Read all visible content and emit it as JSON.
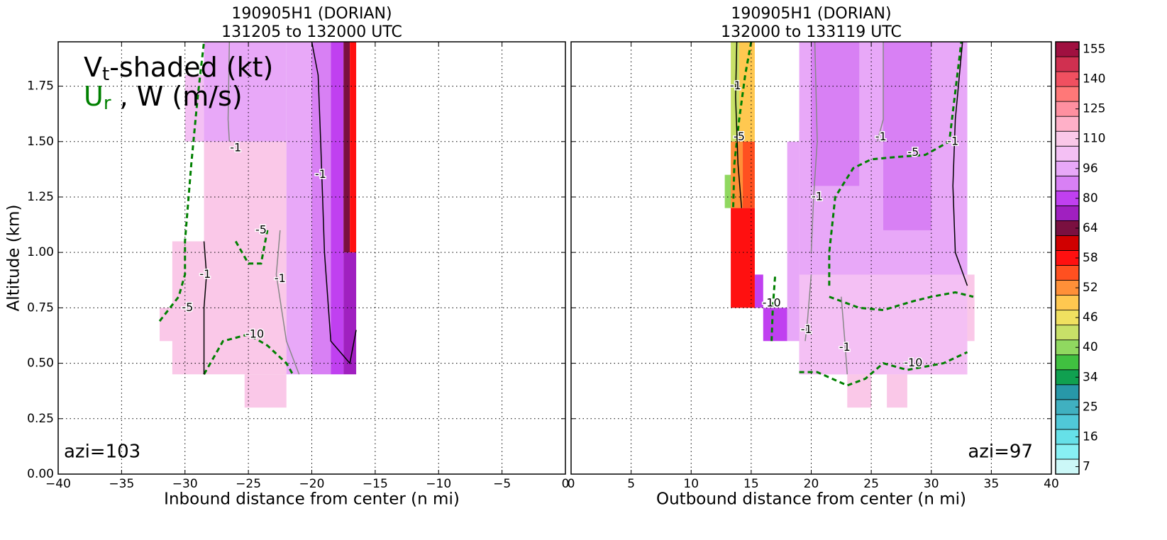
{
  "chart_data": [
    {
      "type": "contour",
      "title": [
        "190905H1 (DORIAN)",
        "131205 to 132000 UTC"
      ],
      "xlabel": "Inbound distance from center (n mi)",
      "ylabel": "Altitude (km)",
      "xlim": [
        -40,
        0
      ],
      "ylim": [
        0,
        1.95
      ],
      "xticks": [
        {
          "value": -40,
          "label": "−40"
        },
        {
          "value": -35,
          "label": "−35"
        },
        {
          "value": -30,
          "label": "−30"
        },
        {
          "value": -25,
          "label": "−25"
        },
        {
          "value": -20,
          "label": "−20"
        },
        {
          "value": -15,
          "label": "−15"
        },
        {
          "value": -10,
          "label": "−10"
        },
        {
          "value": -5,
          "label": "−5"
        },
        0
      ],
      "yticks": [
        {
          "value": 0,
          "label": "0.00"
        },
        {
          "value": 0.25,
          "label": "0.25"
        },
        {
          "value": 0.5,
          "label": "0.50"
        },
        {
          "value": 0.75,
          "label": "0.75"
        },
        {
          "value": 1,
          "label": "1.00"
        },
        {
          "value": 1.25,
          "label": "1.25"
        },
        {
          "value": 1.5,
          "label": "1.50"
        },
        {
          "value": 1.75,
          "label": "1.75"
        }
      ],
      "grid": true,
      "legend": {
        "vt": [
          "V",
          "t",
          "-shaded (kt)"
        ],
        "ur": [
          "U",
          "r",
          " , W (m/s)"
        ],
        "ur_color": "#008000"
      },
      "annotation": "azi=103",
      "fields": [
        {
          "x": [
            -30,
            -28.5
          ],
          "y": [
            1.5,
            1.8
          ],
          "value": 103
        },
        {
          "x": [
            -32,
            -30
          ],
          "y": [
            0.6,
            0.75
          ],
          "value": 110
        },
        {
          "x": [
            -31,
            -28.5
          ],
          "y": [
            0.45,
            1.05
          ],
          "value": 110
        },
        {
          "x": [
            -28.5,
            -22
          ],
          "y": [
            0.45,
            1.5
          ],
          "value": 110
        },
        {
          "x": [
            -25.3,
            -22
          ],
          "y": [
            0.3,
            0.45
          ],
          "value": 110
        },
        {
          "x": [
            -28.5,
            -22
          ],
          "y": [
            1.5,
            1.95
          ],
          "value": 96
        },
        {
          "x": [
            -22,
            -20
          ],
          "y": [
            0.45,
            1.95
          ],
          "value": 96
        },
        {
          "x": [
            -20,
            -18.5
          ],
          "y": [
            0.45,
            1.95
          ],
          "value": 88
        },
        {
          "x": [
            -18.5,
            -17.5
          ],
          "y": [
            0.45,
            1.95
          ],
          "value": 80
        },
        {
          "x": [
            -17.5,
            -16.5
          ],
          "y": [
            0.45,
            1.0
          ],
          "value": 72
        },
        {
          "x": [
            -17.5,
            -17
          ],
          "y": [
            1.0,
            1.95
          ],
          "value": 64
        },
        {
          "x": [
            -17,
            -16.5
          ],
          "y": [
            1.0,
            1.95
          ],
          "value": 58
        }
      ],
      "contours": [
        {
          "level": -5,
          "color": "#008000",
          "dashed": true,
          "x": [
            -32,
            -30.5,
            -30,
            -30,
            -29.5,
            -29,
            -28.5
          ],
          "y": [
            0.69,
            0.8,
            0.9,
            1.05,
            1.4,
            1.7,
            1.95
          ],
          "label_at": [
            -29.8,
            0.75
          ]
        },
        {
          "level": -10,
          "color": "#008000",
          "dashed": true,
          "x": [
            -28.5,
            -27,
            -25,
            -23.5,
            -22,
            -21.5
          ],
          "y": [
            0.45,
            0.6,
            0.63,
            0.58,
            0.5,
            0.45
          ],
          "label_at": [
            -24.5,
            0.63
          ]
        },
        {
          "level": -5,
          "color": "#008000",
          "dashed": true,
          "x": [
            -26,
            -25,
            -24,
            -23.5
          ],
          "y": [
            1.05,
            0.95,
            0.95,
            1.1
          ],
          "label_at": [
            -24,
            1.1
          ]
        },
        {
          "level": -1,
          "color": "#000000",
          "dashed": false,
          "x": [
            -28.5,
            -28.5,
            -28.3,
            -28.5
          ],
          "y": [
            0.45,
            0.75,
            0.9,
            1.05
          ],
          "label_at": [
            -28.4,
            0.9
          ]
        },
        {
          "level": -1,
          "color": "#000000",
          "dashed": false,
          "x": [
            -20,
            -19.5,
            -19.3,
            -19,
            -18.5,
            -17,
            -16.5
          ],
          "y": [
            1.95,
            1.8,
            1.5,
            1.0,
            0.6,
            0.5,
            0.65
          ],
          "label_at": [
            -19.3,
            1.35
          ]
        },
        {
          "level": -1,
          "color": "#888888",
          "dashed": false,
          "x": [
            -26.5,
            -26.6,
            -26.5
          ],
          "y": [
            1.95,
            1.6,
            1.5
          ],
          "label_at": [
            -26,
            1.47
          ]
        },
        {
          "level": -1,
          "color": "#888888",
          "dashed": false,
          "x": [
            -22.5,
            -22.8,
            -22,
            -21
          ],
          "y": [
            1.1,
            0.9,
            0.6,
            0.45
          ],
          "label_at": [
            -22.5,
            0.88
          ]
        }
      ]
    },
    {
      "type": "contour",
      "title": [
        "190905H1 (DORIAN)",
        "132000 to 133119 UTC"
      ],
      "xlabel": "Outbound distance from center (n mi)",
      "xlim": [
        0,
        40
      ],
      "ylim": [
        0,
        1.95
      ],
      "xticks": [
        0,
        5,
        10,
        15,
        20,
        25,
        30,
        35,
        40
      ],
      "yticks": [
        0,
        0.25,
        0.5,
        0.75,
        1,
        1.25,
        1.5,
        1.75
      ],
      "show_ytick_labels": false,
      "grid": true,
      "annotation": "azi=97",
      "fields": [
        {
          "x": [
            13.3,
            14
          ],
          "y": [
            1.5,
            1.95
          ],
          "value": 43
        },
        {
          "x": [
            14,
            15.3
          ],
          "y": [
            1.5,
            1.95
          ],
          "value": 49
        },
        {
          "x": [
            12.8,
            13.5
          ],
          "y": [
            1.2,
            1.35
          ],
          "value": 40
        },
        {
          "x": [
            13.3,
            14.3
          ],
          "y": [
            1.2,
            1.5
          ],
          "value": 52
        },
        {
          "x": [
            14.3,
            15.3
          ],
          "y": [
            1.2,
            1.5
          ],
          "value": 55
        },
        {
          "x": [
            13.3,
            15.3
          ],
          "y": [
            0.75,
            1.2
          ],
          "value": 58
        },
        {
          "x": [
            15.3,
            16
          ],
          "y": [
            0.75,
            0.9
          ],
          "value": 80
        },
        {
          "x": [
            16,
            18
          ],
          "y": [
            0.6,
            0.75
          ],
          "value": 80
        },
        {
          "x": [
            18,
            19
          ],
          "y": [
            0.6,
            1.5
          ],
          "value": 96
        },
        {
          "x": [
            19,
            33
          ],
          "y": [
            0.45,
            1.95
          ],
          "value": 96
        },
        {
          "x": [
            19,
            33
          ],
          "y": [
            0.45,
            0.9
          ],
          "value": 103
        },
        {
          "x": [
            20,
            24
          ],
          "y": [
            1.3,
            1.95
          ],
          "value": 88
        },
        {
          "x": [
            26,
            30
          ],
          "y": [
            1.1,
            1.95
          ],
          "value": 88
        },
        {
          "x": [
            23,
            25
          ],
          "y": [
            0.3,
            0.45
          ],
          "value": 110
        },
        {
          "x": [
            26.3,
            28
          ],
          "y": [
            0.3,
            0.45
          ],
          "value": 110
        },
        {
          "x": [
            33,
            33.6
          ],
          "y": [
            0.6,
            0.9
          ],
          "value": 110
        }
      ],
      "contours": [
        {
          "level": -5,
          "color": "#008000",
          "dashed": true,
          "x": [
            15,
            14.5,
            14,
            13.6,
            13.5
          ],
          "y": [
            1.95,
            1.8,
            1.6,
            1.4,
            1.2
          ],
          "label_at": [
            14,
            1.52
          ]
        },
        {
          "level": -5,
          "color": "#008000",
          "dashed": true,
          "x": [
            21.5,
            21.5,
            22,
            23.5,
            25,
            27,
            29.5,
            31.5,
            32.5
          ],
          "y": [
            0.85,
            1.0,
            1.25,
            1.38,
            1.42,
            1.43,
            1.44,
            1.5,
            1.95
          ],
          "label_at": [
            28.5,
            1.45
          ]
        },
        {
          "level": -5,
          "color": "#008000",
          "dashed": true,
          "x": [
            21.5,
            24,
            26,
            28.5,
            30,
            32,
            33.5
          ],
          "y": [
            0.8,
            0.75,
            0.74,
            0.78,
            0.8,
            0.82,
            0.8
          ],
          "label_at": null
        },
        {
          "level": -10,
          "color": "#008000",
          "dashed": true,
          "x": [
            19,
            20.5,
            23,
            24.5,
            26,
            28,
            31,
            33
          ],
          "y": [
            0.46,
            0.46,
            0.4,
            0.43,
            0.5,
            0.47,
            0.5,
            0.55
          ],
          "label_at": [
            28.5,
            0.5
          ]
        },
        {
          "level": -10,
          "color": "#008000",
          "dashed": true,
          "x": [
            16.7,
            16.8,
            17
          ],
          "y": [
            0.6,
            0.75,
            0.9
          ],
          "label_at": [
            16.7,
            0.77
          ]
        },
        {
          "level": -1,
          "color": "#000000",
          "dashed": false,
          "x": [
            32.6,
            32,
            31.8,
            32,
            33
          ],
          "y": [
            1.95,
            1.6,
            1.3,
            1.0,
            0.85
          ],
          "label_at": [
            31.8,
            1.5
          ]
        },
        {
          "level": -1,
          "color": "#000000",
          "dashed": false,
          "x": [
            13.8,
            13.7,
            13.9,
            14.2
          ],
          "y": [
            1.95,
            1.7,
            1.4,
            1.2
          ],
          "label_at": [
            13.7,
            1.75
          ]
        },
        {
          "level": -1,
          "color": "#888888",
          "dashed": false,
          "x": [
            20.3,
            20.5,
            20.2,
            20
          ],
          "y": [
            1.95,
            1.5,
            1.25,
            1.0
          ],
          "label_at": [
            20.5,
            1.25
          ]
        },
        {
          "level": -1,
          "color": "#888888",
          "dashed": false,
          "x": [
            26,
            26,
            25.5
          ],
          "y": [
            1.95,
            1.6,
            1.5
          ],
          "label_at": [
            25.8,
            1.52
          ]
        },
        {
          "level": -1,
          "color": "#888888",
          "dashed": false,
          "x": [
            20,
            19.7,
            19.5
          ],
          "y": [
            0.9,
            0.7,
            0.6
          ],
          "label_at": [
            19.6,
            0.65
          ]
        },
        {
          "level": -1,
          "color": "#888888",
          "dashed": false,
          "x": [
            22.5,
            22.8,
            23
          ],
          "y": [
            0.8,
            0.6,
            0.45
          ],
          "label_at": [
            22.8,
            0.57
          ]
        }
      ]
    }
  ],
  "colorbar": {
    "levels": [
      7,
      11.5,
      16,
      20.5,
      25,
      29.5,
      34,
      37,
      40,
      43,
      46,
      49,
      52,
      55,
      58,
      61,
      64,
      72,
      80,
      88,
      96,
      103,
      110,
      117.5,
      125,
      132.5,
      140,
      147.5,
      155
    ],
    "colors": [
      "#ccf8f8",
      "#88f0f4",
      "#66e0e8",
      "#50c8d8",
      "#40b0c0",
      "#2898a8",
      "#10a050",
      "#40c040",
      "#90d860",
      "#c8e068",
      "#f0e060",
      "#ffc850",
      "#ff9038",
      "#ff5020",
      "#ff1010",
      "#d00000",
      "#7a1040",
      "#a020c0",
      "#c040f0",
      "#d880f4",
      "#e8a8f8",
      "#f4c0f4",
      "#fac8e8",
      "#ffb0c8",
      "#ff90a0",
      "#ff7878",
      "#f05060",
      "#d03050",
      "#a01040"
    ],
    "ticks": [
      7,
      16,
      25,
      34,
      40,
      46,
      52,
      58,
      64,
      80,
      96,
      110,
      125,
      140,
      155
    ]
  }
}
